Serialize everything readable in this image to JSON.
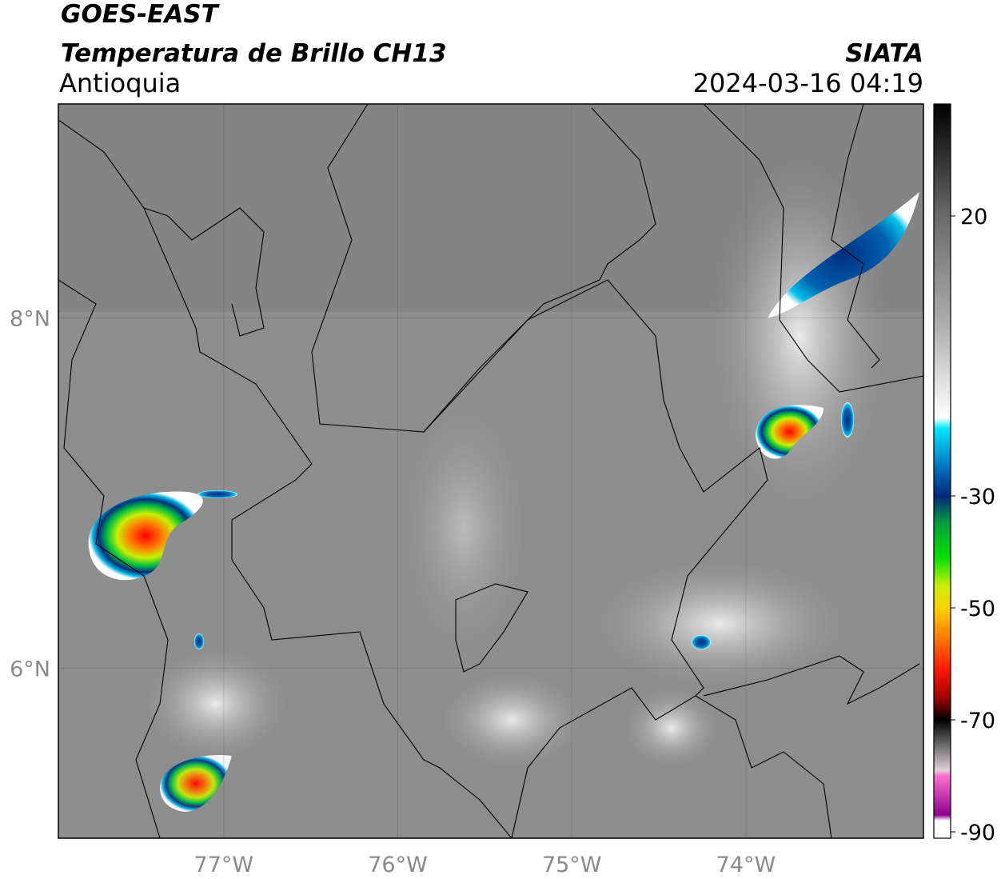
{
  "header": {
    "title": "GOES-EAST",
    "subtitle": "Temperatura de Brillo CH13",
    "region": "Antioquia",
    "source": "SIATA",
    "datetime": "2024-03-16 04:19"
  },
  "map": {
    "xlim": [
      -77.95,
      -72.98
    ],
    "ylim": [
      5.03,
      9.22
    ],
    "xticks": [
      {
        "value": -77,
        "label": "77°W"
      },
      {
        "value": -76,
        "label": "76°W"
      },
      {
        "value": -75,
        "label": "75°W"
      },
      {
        "value": -74,
        "label": "74°W"
      }
    ],
    "yticks": [
      {
        "value": 6,
        "label": "6°N"
      },
      {
        "value": 8,
        "label": "8°N"
      }
    ],
    "grid": true
  },
  "colorbar": {
    "clim": [
      -90,
      40
    ],
    "ticks": [
      20,
      -30,
      -50,
      -70,
      -90
    ],
    "colormap": [
      {
        "value": 40,
        "color": "#000000"
      },
      {
        "value": 30,
        "color": "#333333"
      },
      {
        "value": 20,
        "color": "#6a6a6a"
      },
      {
        "value": 0,
        "color": "#b0b0b0"
      },
      {
        "value": -16,
        "color": "#ffffff"
      },
      {
        "value": -18,
        "color": "#00e5ff"
      },
      {
        "value": -25,
        "color": "#0070c0"
      },
      {
        "value": -30,
        "color": "#00287a"
      },
      {
        "value": -35,
        "color": "#00a040"
      },
      {
        "value": -41,
        "color": "#00e000"
      },
      {
        "value": -46,
        "color": "#c8f000"
      },
      {
        "value": -50,
        "color": "#ffd000"
      },
      {
        "value": -55,
        "color": "#ff8000"
      },
      {
        "value": -61,
        "color": "#ff1800"
      },
      {
        "value": -66,
        "color": "#a00000"
      },
      {
        "value": -70,
        "color": "#000000"
      },
      {
        "value": -75,
        "color": "#777777"
      },
      {
        "value": -79,
        "color": "#e0d0d8"
      },
      {
        "value": -80,
        "color": "#ff70d0"
      },
      {
        "value": -87,
        "color": "#900090"
      },
      {
        "value": -88,
        "color": "#ffffff"
      },
      {
        "value": -90,
        "color": "#ffffff"
      }
    ]
  }
}
